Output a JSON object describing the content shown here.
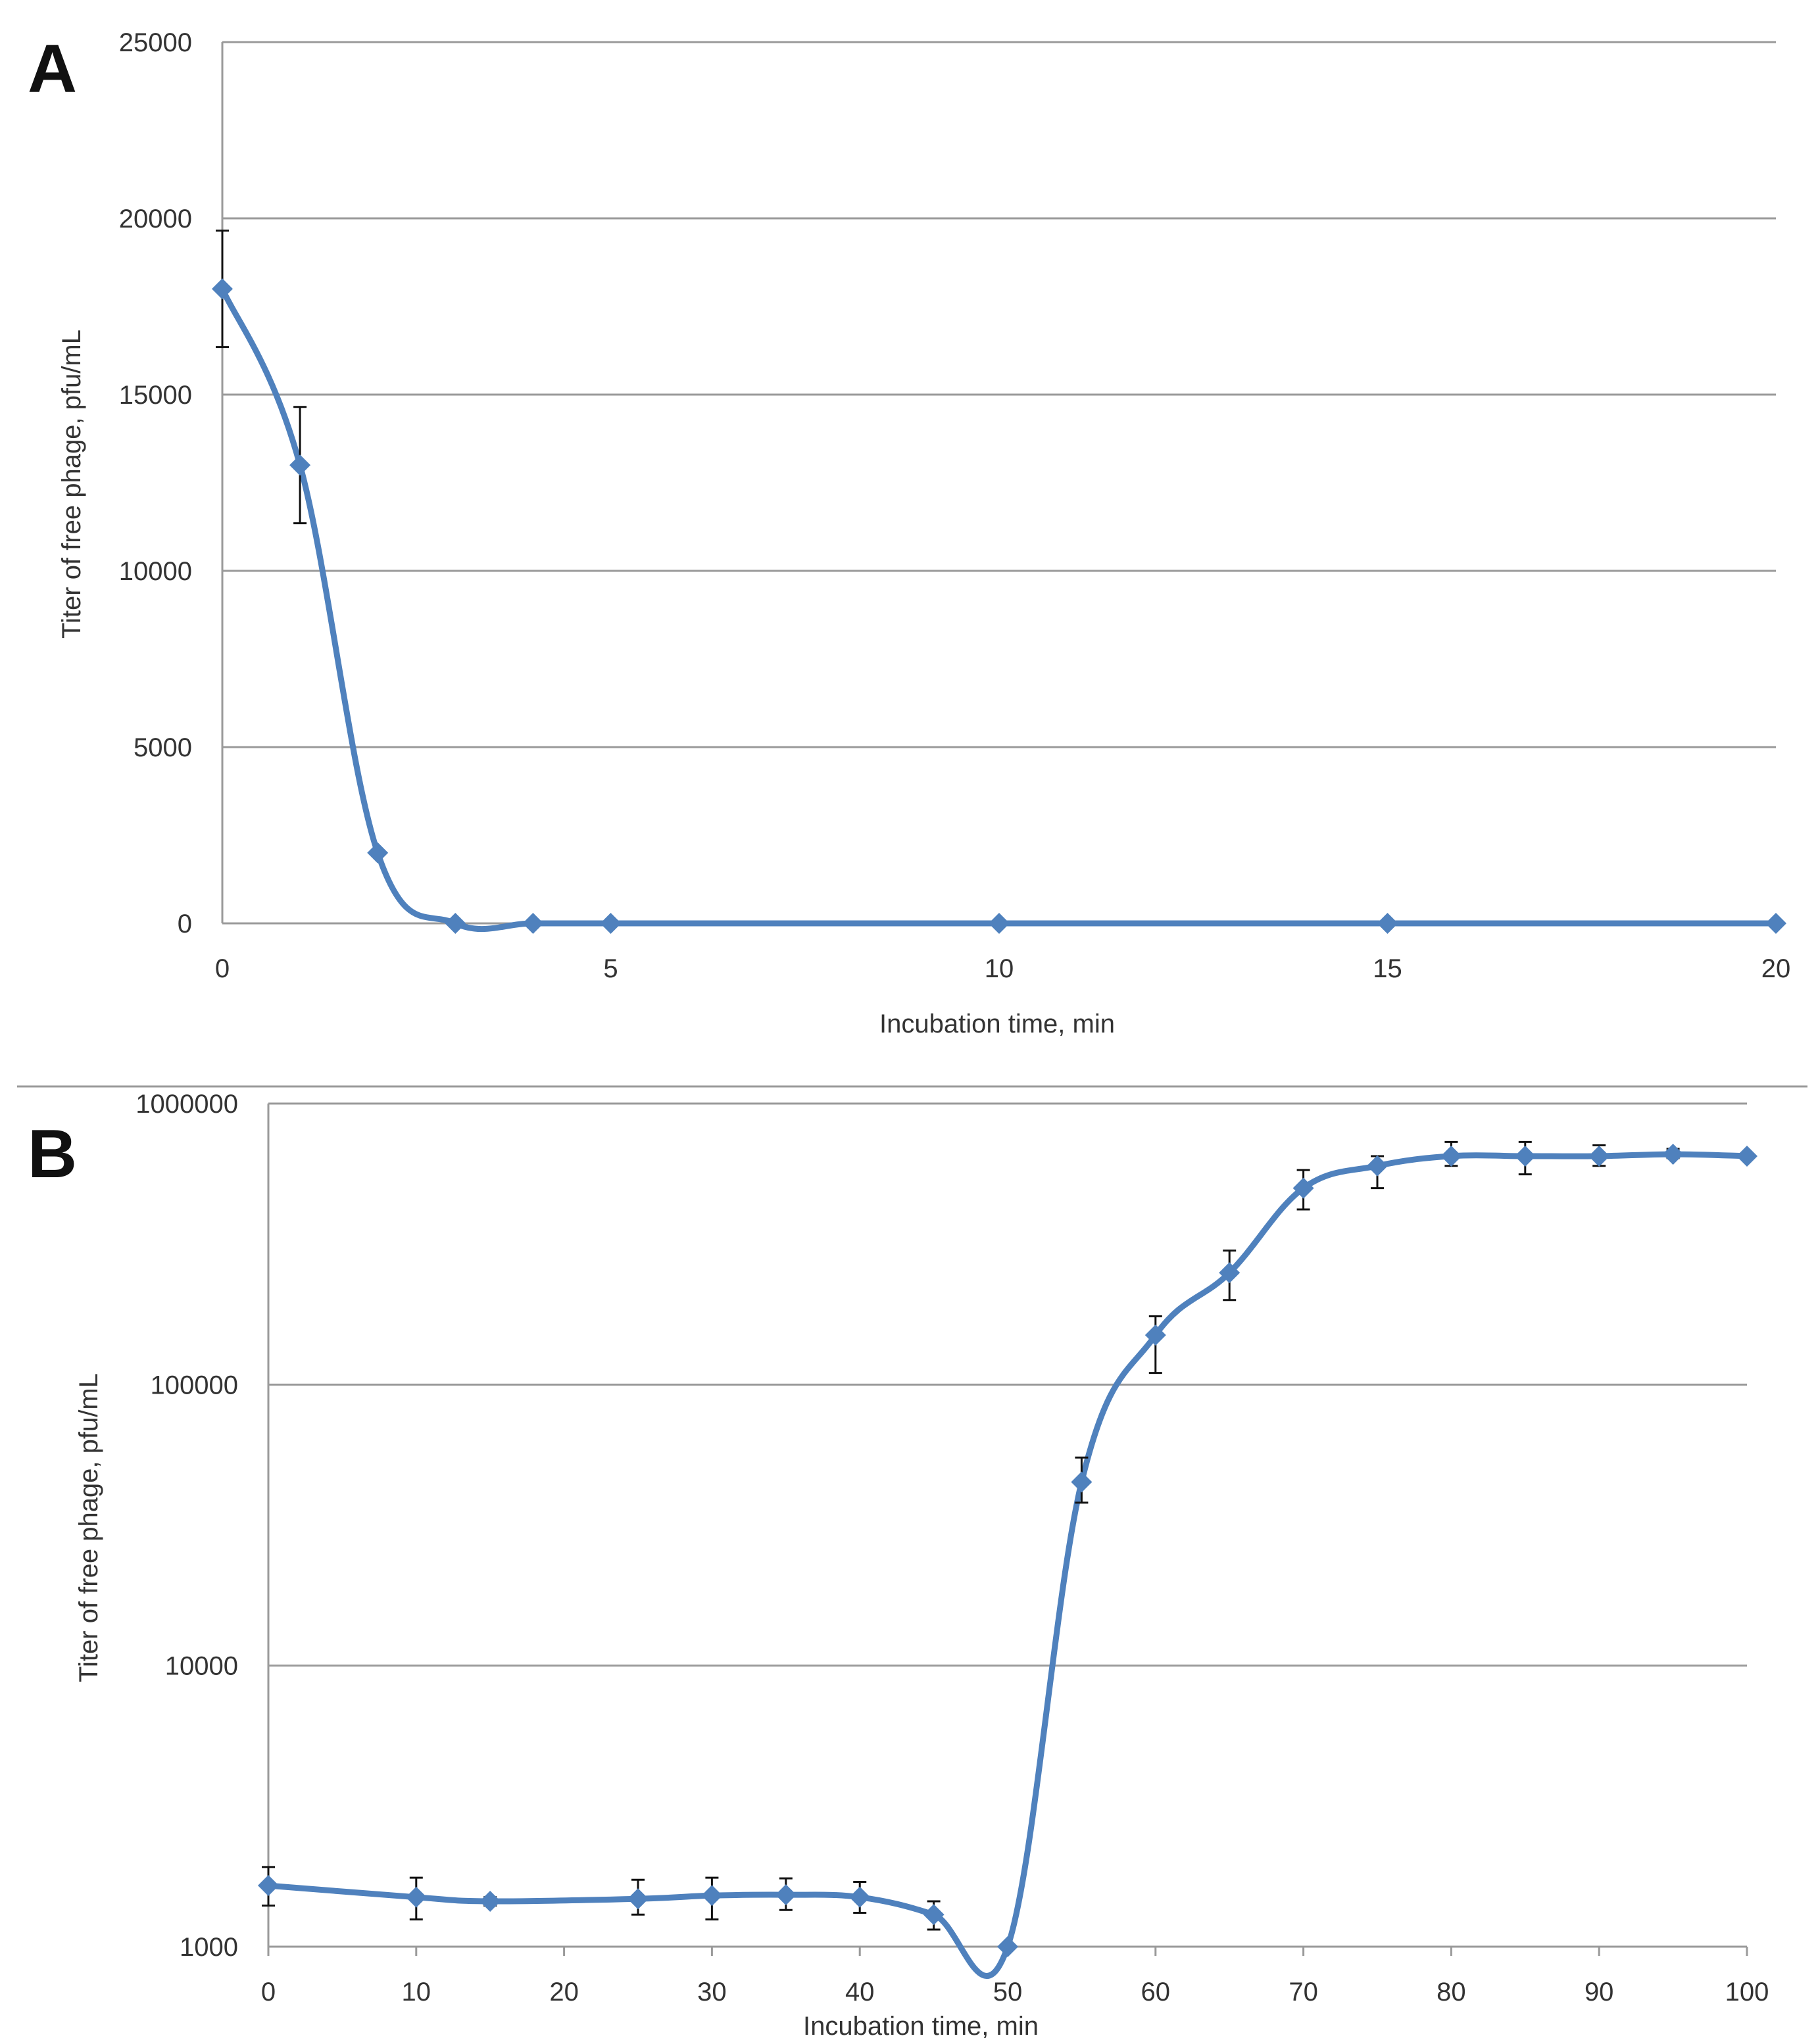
{
  "colors": {
    "series": "#4f81bd",
    "grid": "#9a9a9a",
    "error_bar": "#111111"
  },
  "chart_data": [
    {
      "panel": "A",
      "type": "line",
      "scale": "linear",
      "title": "",
      "xlabel": "Incubation time, min",
      "ylabel": "Titer of free phage, pfu/mL",
      "xlim": [
        0,
        20
      ],
      "ylim": [
        0,
        25000
      ],
      "xticks": [
        "0",
        "5",
        "10",
        "15",
        "20"
      ],
      "yticks": [
        "0",
        "5000",
        "10000",
        "15000",
        "20000",
        "25000"
      ],
      "grid": true,
      "marker": "diamond",
      "x": [
        0,
        1,
        2,
        3,
        4,
        5,
        10,
        15,
        20
      ],
      "y": [
        18000,
        13000,
        2000,
        0,
        0,
        0,
        0,
        0,
        0
      ],
      "error": [
        1650,
        1650,
        0,
        0,
        0,
        0,
        0,
        0,
        0
      ]
    },
    {
      "panel": "B",
      "type": "line",
      "scale": "log",
      "title": "",
      "xlabel": "Incubation time, min",
      "ylabel": "Titer of free phage, pfu/mL",
      "xlim": [
        0,
        100
      ],
      "ylim": [
        1000,
        1000000
      ],
      "xticks": [
        "0",
        "10",
        "20",
        "30",
        "40",
        "50",
        "60",
        "70",
        "80",
        "90",
        "100"
      ],
      "yticks": [
        "1000",
        "10000",
        "100000",
        "1000000"
      ],
      "grid": true,
      "marker": "diamond",
      "x": [
        0,
        10,
        15,
        25,
        30,
        35,
        40,
        45,
        50,
        55,
        60,
        65,
        70,
        75,
        80,
        85,
        90,
        95,
        100
      ],
      "y": [
        1650,
        1500,
        1450,
        1480,
        1520,
        1530,
        1500,
        1300,
        1000,
        45000,
        150000,
        250000,
        500000,
        600000,
        650000,
        650000,
        650000,
        660000,
        650000
      ],
      "err_low": [
        1400,
        1250,
        1400,
        1300,
        1250,
        1350,
        1320,
        1150,
        1000,
        38000,
        110000,
        200000,
        420000,
        500000,
        600000,
        560000,
        600000,
        640000,
        650000
      ],
      "err_high": [
        1920,
        1760,
        1500,
        1730,
        1760,
        1750,
        1700,
        1450,
        1000,
        55000,
        175000,
        300000,
        580000,
        650000,
        730000,
        730000,
        710000,
        690000,
        650000
      ]
    }
  ]
}
